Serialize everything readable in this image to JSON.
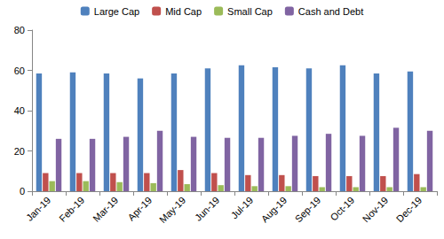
{
  "chart_data": {
    "type": "bar",
    "categories": [
      "Jan-19",
      "Feb-19",
      "Mar-19",
      "Apr-19",
      "May-19",
      "Jun-19",
      "Jul-19",
      "Aug-19",
      "Sep-19",
      "Oct-19",
      "Nov-19",
      "Dec-19"
    ],
    "series": [
      {
        "name": "Large Cap",
        "color": "#4f81bd",
        "values": [
          58.5,
          59,
          58.5,
          56,
          58.5,
          61,
          62.5,
          61.5,
          61,
          62.5,
          58.5,
          59.5
        ]
      },
      {
        "name": "Mid Cap",
        "color": "#c0504d",
        "values": [
          9,
          9,
          9,
          9,
          10.5,
          9,
          8,
          8,
          7.5,
          7.5,
          7.5,
          8.5
        ]
      },
      {
        "name": "Small Cap",
        "color": "#9bbb59",
        "values": [
          5,
          5,
          4.5,
          4,
          3.5,
          3,
          2.5,
          2.5,
          2,
          2,
          2,
          2
        ]
      },
      {
        "name": "Cash and Debt",
        "color": "#8064a2",
        "values": [
          26,
          26,
          27,
          30,
          27,
          26.5,
          26.5,
          27.5,
          28.5,
          27.5,
          31.5,
          30
        ]
      }
    ],
    "ylim": [
      0,
      80
    ],
    "yticks": [
      0,
      20,
      40,
      60,
      80
    ],
    "grid": false,
    "legend": "top"
  }
}
